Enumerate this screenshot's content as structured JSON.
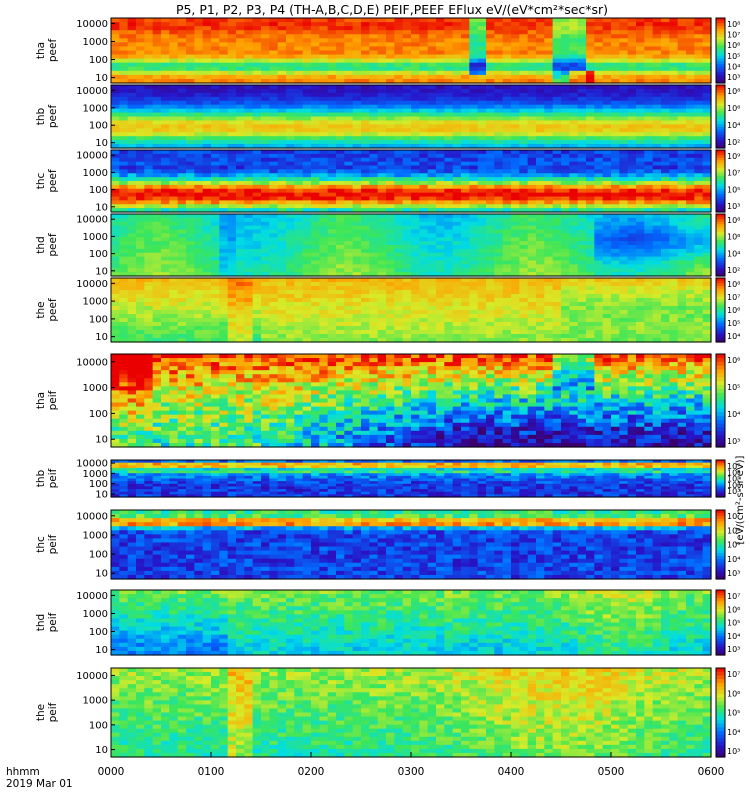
{
  "title": "P5, P1, P2, P3, P4 (TH-A,B,C,D,E) PEIF,PEEF EFlux eV/(eV*cm²*sec*sr)",
  "colorbar_unit_label": "[eV/(cm²-s-sr-eV)]",
  "time_axis": {
    "corner_label_top": "hhmm",
    "corner_label_bottom": "2019 Mar 01",
    "ticks": [
      "0000",
      "0100",
      "0200",
      "0300",
      "0400",
      "0500",
      "0600"
    ]
  },
  "chart_data": {
    "type": "heatmap",
    "x_range": [
      "0000",
      "0600"
    ],
    "y_scale": "log",
    "y_range": [
      5,
      20000
    ],
    "panels": [
      {
        "id": "tha-peef",
        "ylabel_top": "tha",
        "ylabel_bottom": "peef",
        "y_ticks": [
          "10000",
          "1000",
          "100",
          "10"
        ],
        "cbar_ticks": [
          "10⁸",
          "10⁷",
          "10⁶",
          "10⁵",
          "10⁴",
          "10³"
        ],
        "profile": "tha_e",
        "noise": 0.05
      },
      {
        "id": "thb-peef",
        "ylabel_top": "thb",
        "ylabel_bottom": "peef",
        "y_ticks": [
          "10000",
          "1000",
          "100",
          "10"
        ],
        "cbar_ticks": [
          "10⁸",
          "10⁶",
          "10⁴",
          "10²"
        ],
        "profile": "thb_e",
        "noise": 0.04
      },
      {
        "id": "thc-peef",
        "ylabel_top": "thc",
        "ylabel_bottom": "peef",
        "y_ticks": [
          "10000",
          "1000",
          "100",
          "10"
        ],
        "cbar_ticks": [
          "10⁹",
          "10⁷",
          "10⁵",
          "10³"
        ],
        "profile": "thc_e",
        "noise": 0.08
      },
      {
        "id": "thd-peef",
        "ylabel_top": "thd",
        "ylabel_bottom": "peef",
        "y_ticks": [
          "10000",
          "1000",
          "100",
          "10"
        ],
        "cbar_ticks": [
          "10⁸",
          "10⁶",
          "10⁴",
          "10²"
        ],
        "profile": "thd_e",
        "noise": 0.04
      },
      {
        "id": "the-peef",
        "ylabel_top": "the",
        "ylabel_bottom": "peef",
        "y_ticks": [
          "10000",
          "1000",
          "100",
          "10"
        ],
        "cbar_ticks": [
          "10⁸",
          "10⁷",
          "10⁶",
          "10⁵",
          "10⁴"
        ],
        "profile": "the_e",
        "noise": 0.05
      },
      {
        "id": "tha-peif",
        "ylabel_top": "tha",
        "ylabel_bottom": "peif",
        "y_ticks": [
          "10000",
          "1000",
          "100",
          "10"
        ],
        "cbar_ticks": [
          "10⁶",
          "10⁵",
          "10⁴",
          "10³"
        ],
        "profile": "tha_i",
        "noise": 0.16
      },
      {
        "id": "thb-peif",
        "ylabel_top": "thb",
        "ylabel_bottom": "peif",
        "y_ticks": [
          "10000",
          "1000",
          "100",
          "10"
        ],
        "cbar_ticks": [
          "10⁷",
          "10⁶",
          "10⁵",
          "10⁴",
          "10³"
        ],
        "profile": "thb_i",
        "noise": 0.1
      },
      {
        "id": "thc-peif",
        "ylabel_top": "thc",
        "ylabel_bottom": "peif",
        "y_ticks": [
          "10000",
          "1000",
          "100",
          "10"
        ],
        "cbar_ticks": [
          "10⁷",
          "10⁶",
          "10⁵",
          "10⁴",
          "10³"
        ],
        "profile": "thc_i",
        "noise": 0.1
      },
      {
        "id": "thd-peif",
        "ylabel_top": "thd",
        "ylabel_bottom": "peif",
        "y_ticks": [
          "10000",
          "1000",
          "100",
          "10"
        ],
        "cbar_ticks": [
          "10⁷",
          "10⁶",
          "10⁵",
          "10⁴",
          "10³"
        ],
        "profile": "thd_i",
        "noise": 0.08
      },
      {
        "id": "the-peif",
        "ylabel_top": "the",
        "ylabel_bottom": "peif",
        "y_ticks": [
          "10000",
          "1000",
          "100",
          "10"
        ],
        "cbar_ticks": [
          "10⁷",
          "10⁶",
          "10⁵",
          "10⁴",
          "10³"
        ],
        "profile": "the_i",
        "noise": 0.08
      }
    ]
  }
}
